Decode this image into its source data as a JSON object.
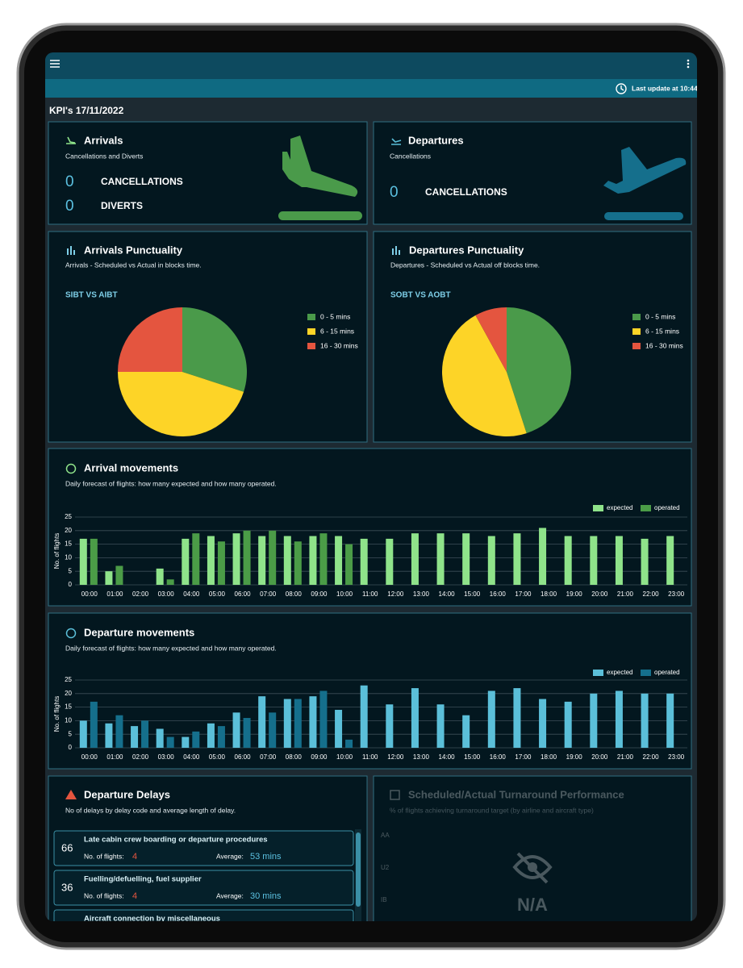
{
  "header": {
    "last_update": "Last update at 10:44",
    "title": "KPI's 17/11/2022"
  },
  "arrivals": {
    "title": "Arrivals",
    "subtitle": "Cancellations and Diverts",
    "stats": [
      {
        "value": 0,
        "label": "CANCELLATIONS"
      },
      {
        "value": 0,
        "label": "DIVERTS"
      }
    ]
  },
  "departures": {
    "title": "Departures",
    "subtitle": "Cancellations",
    "stats": [
      {
        "value": 0,
        "label": "CANCELLATIONS"
      }
    ]
  },
  "chart_data": [
    {
      "type": "pie",
      "title": "Arrivals Punctuality",
      "subtitle": "Arrivals - Scheduled vs Actual in blocks time.",
      "label": "SIBT VS AIBT",
      "categories": [
        "0 - 5 mins",
        "6 - 15 mins",
        "16 - 30 mins"
      ],
      "values": [
        30,
        45,
        25
      ],
      "colors": [
        "#4a9a4a",
        "#fdd427",
        "#e4553f"
      ],
      "legend": "right"
    },
    {
      "type": "pie",
      "title": "Departures Punctuality",
      "subtitle": "Departures - Scheduled vs Actual off blocks time.",
      "label": "SOBT VS AOBT",
      "categories": [
        "0 - 5 mins",
        "6 - 15 mins",
        "16 - 30 mins"
      ],
      "values": [
        45,
        47,
        8
      ],
      "colors": [
        "#4a9a4a",
        "#fdd427",
        "#e4553f"
      ],
      "legend": "right"
    },
    {
      "type": "bar",
      "title": "Arrival movements",
      "subtitle": "Daily forecast of flights: how many expected and how many operated.",
      "ylabel": "No. of flights",
      "categories": [
        "00:00",
        "01:00",
        "02:00",
        "03:00",
        "04:00",
        "05:00",
        "06:00",
        "07:00",
        "08:00",
        "09:00",
        "10:00",
        "11:00",
        "12:00",
        "13:00",
        "14:00",
        "15:00",
        "16:00",
        "17:00",
        "18:00",
        "19:00",
        "20:00",
        "21:00",
        "22:00",
        "23:00"
      ],
      "series": [
        {
          "name": "expected",
          "color": "#8fe38a",
          "values": [
            17,
            5,
            0,
            6,
            17,
            18,
            19,
            18,
            18,
            18,
            18,
            17,
            17,
            19,
            19,
            19,
            18,
            19,
            21,
            18,
            18,
            18,
            17,
            18
          ]
        },
        {
          "name": "operated",
          "color": "#4b9c47",
          "values": [
            17,
            7,
            0,
            2,
            19,
            16,
            20,
            20,
            16,
            19,
            15,
            null,
            null,
            null,
            null,
            null,
            null,
            null,
            null,
            null,
            null,
            null,
            null,
            null
          ]
        }
      ],
      "ylim": [
        0,
        25
      ],
      "yticks": [
        0,
        5,
        10,
        15,
        20,
        25
      ],
      "grid": true,
      "legend": "top-right"
    },
    {
      "type": "bar",
      "title": "Departure movements",
      "subtitle": "Daily forecast of flights: how many expected and how many operated.",
      "ylabel": "No. of flights",
      "categories": [
        "00:00",
        "01:00",
        "02:00",
        "03:00",
        "04:00",
        "05:00",
        "06:00",
        "07:00",
        "08:00",
        "09:00",
        "10:00",
        "11:00",
        "12:00",
        "13:00",
        "14:00",
        "15:00",
        "16:00",
        "17:00",
        "18:00",
        "19:00",
        "20:00",
        "21:00",
        "22:00",
        "23:00"
      ],
      "series": [
        {
          "name": "expected",
          "color": "#5bbfd9",
          "values": [
            10,
            9,
            8,
            7,
            4,
            9,
            13,
            19,
            18,
            19,
            14,
            23,
            16,
            22,
            16,
            12,
            21,
            22,
            18,
            17,
            20,
            21,
            20,
            20
          ]
        },
        {
          "name": "operated",
          "color": "#156f8c",
          "values": [
            17,
            12,
            10,
            4,
            6,
            8,
            11,
            13,
            18,
            21,
            3,
            null,
            null,
            null,
            null,
            null,
            null,
            null,
            null,
            null,
            null,
            null,
            null,
            null
          ]
        }
      ],
      "ylim": [
        0,
        25
      ],
      "yticks": [
        0,
        5,
        10,
        15,
        20,
        25
      ],
      "grid": true,
      "legend": "top-right"
    }
  ],
  "departure_delays": {
    "title": "Departure Delays",
    "subtitle": "No of delays by delay code and average length of delay.",
    "flights_label": "No. of flights:",
    "average_label": "Average:",
    "items": [
      {
        "code": 66,
        "title": "Late cabin crew boarding or departure procedures",
        "flights": 4,
        "average": "53 mins"
      },
      {
        "code": 36,
        "title": "Fuelling/defuelling, fuel supplier",
        "flights": 4,
        "average": "30 mins"
      },
      {
        "title": "Aircraft connection by miscellaneous"
      }
    ]
  },
  "turnaround": {
    "title": "Scheduled/Actual Turnaround Performance",
    "subtitle": "% of flights achieving turnaround target (by airline and aircraft type)",
    "axis_labels": [
      "AA",
      "U2",
      "IB"
    ],
    "status": "N/A"
  }
}
